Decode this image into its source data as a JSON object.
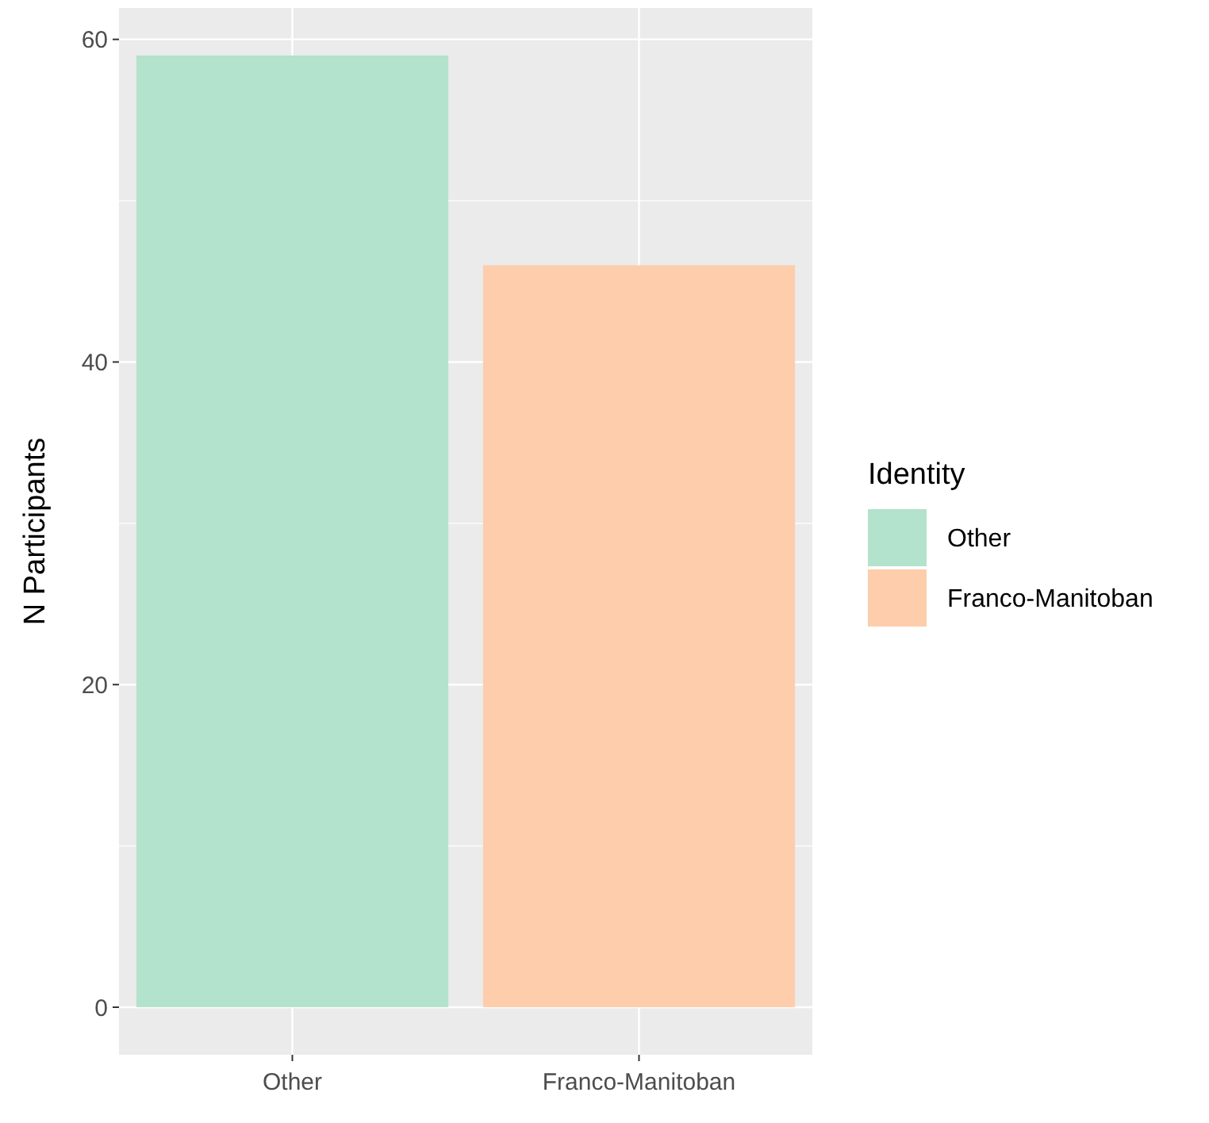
{
  "chart_data": {
    "type": "bar",
    "ylabel": "N Participants",
    "legend_title": "Identity",
    "stacked": true,
    "categories": [
      "Other",
      "Franco-Manitoban"
    ],
    "series": [
      {
        "name": "Other",
        "color": "#b3e2cd",
        "values": [
          59,
          null
        ]
      },
      {
        "name": "Franco-Manitoban",
        "color": "#fdcdac",
        "values": [
          null,
          46
        ]
      }
    ],
    "ylim": [
      -2.95,
      61.95
    ],
    "yticks": [
      0,
      20,
      40,
      60
    ],
    "grid": true,
    "legend": "right"
  }
}
